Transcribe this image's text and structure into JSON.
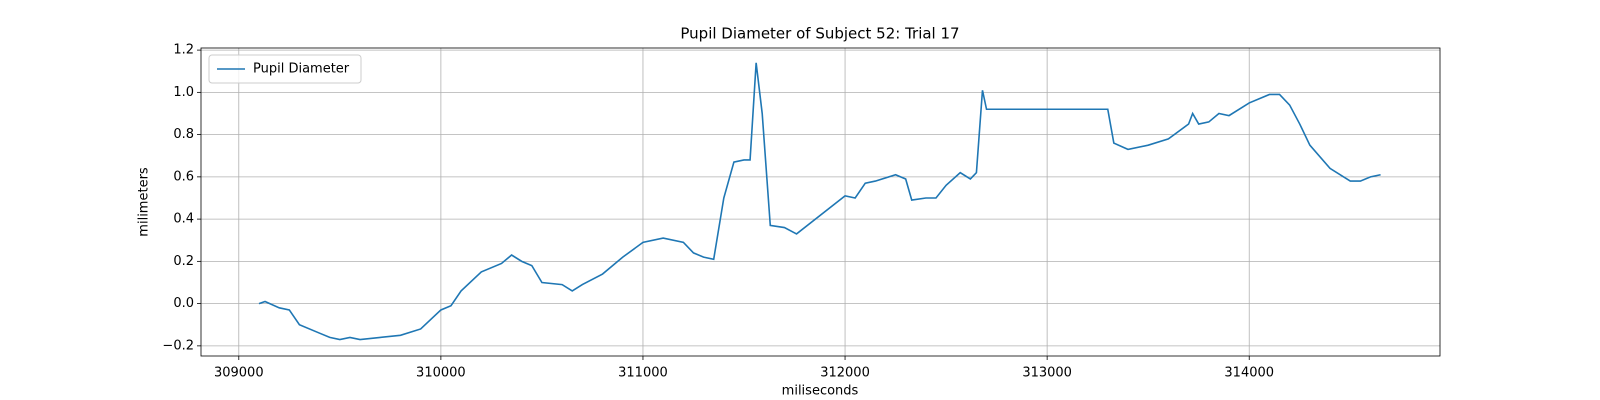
{
  "chart_data": {
    "type": "line",
    "title": "Pupil Diameter of Subject 52: Trial 17",
    "xlabel": "miliseconds",
    "ylabel": "milimeters",
    "x": [
      309100,
      309130,
      309200,
      309250,
      309300,
      309400,
      309450,
      309500,
      309550,
      309600,
      309700,
      309800,
      309900,
      310000,
      310050,
      310100,
      310200,
      310300,
      310350,
      310400,
      310450,
      310500,
      310600,
      310650,
      310700,
      310800,
      310900,
      311000,
      311100,
      311200,
      311250,
      311300,
      311350,
      311400,
      311450,
      311500,
      311530,
      311560,
      311590,
      311630,
      311700,
      311760,
      312000,
      312050,
      312100,
      312150,
      312250,
      312300,
      312330,
      312400,
      312450,
      312500,
      312570,
      312620,
      312650,
      312680,
      312700,
      312800,
      313000,
      313300,
      313330,
      313400,
      313500,
      313600,
      313700,
      313720,
      313750,
      313800,
      313850,
      313900,
      314000,
      314100,
      314150,
      314200,
      314250,
      314300,
      314400,
      314500,
      314550,
      314600,
      314650
    ],
    "series": [
      {
        "name": "Pupil Diameter",
        "color": "#1f77b4",
        "values": [
          0.0,
          0.01,
          -0.02,
          -0.03,
          -0.1,
          -0.14,
          -0.16,
          -0.17,
          -0.16,
          -0.17,
          -0.16,
          -0.15,
          -0.12,
          -0.03,
          -0.01,
          0.06,
          0.15,
          0.19,
          0.23,
          0.2,
          0.18,
          0.1,
          0.09,
          0.06,
          0.09,
          0.14,
          0.22,
          0.29,
          0.31,
          0.29,
          0.24,
          0.22,
          0.21,
          0.5,
          0.67,
          0.68,
          0.68,
          1.14,
          0.9,
          0.37,
          0.36,
          0.33,
          0.51,
          0.5,
          0.57,
          0.58,
          0.61,
          0.59,
          0.49,
          0.5,
          0.5,
          0.56,
          0.62,
          0.59,
          0.62,
          1.01,
          0.92,
          0.92,
          0.92,
          0.92,
          0.76,
          0.73,
          0.75,
          0.78,
          0.85,
          0.9,
          0.85,
          0.86,
          0.9,
          0.89,
          0.95,
          0.99,
          0.99,
          0.94,
          0.85,
          0.75,
          0.64,
          0.58,
          0.58,
          0.6,
          0.61
        ]
      }
    ],
    "xlim": [
      308813,
      314944
    ],
    "xticks": [
      309000,
      310000,
      311000,
      312000,
      313000,
      314000
    ],
    "ylim": [
      -0.248,
      1.21
    ],
    "yticks": [
      {
        "value": -0.2,
        "label": "−0.2"
      },
      {
        "value": 0,
        "label": "0.0"
      },
      0.2,
      0.4,
      0.6,
      0.8,
      {
        "value": 1.0,
        "label": "1.0"
      },
      1.2
    ],
    "grid": true,
    "legend": "upper left"
  }
}
